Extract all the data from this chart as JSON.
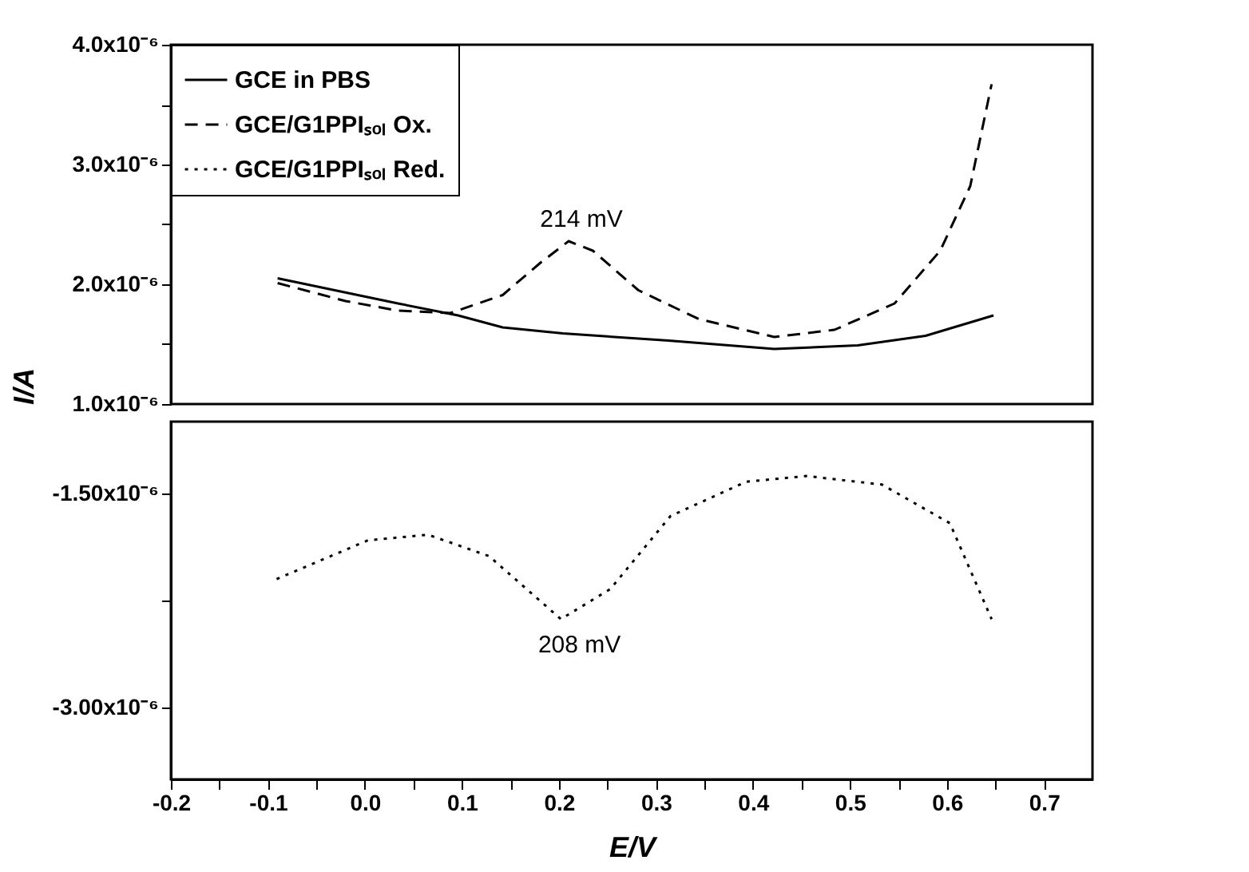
{
  "chart_data": [
    {
      "type": "line",
      "ylabel": "I/A",
      "xlim": [
        -0.2,
        0.75
      ],
      "ylim": [
        1e-06,
        4e-06
      ],
      "tick_labels": "y",
      "yticks": [
        {
          "value": 1e-06,
          "label": "1.0x10⁻⁶"
        },
        {
          "value": 1.5e-06,
          "label": null
        },
        {
          "value": 2e-06,
          "label": "2.0x10⁻⁶"
        },
        {
          "value": 2.5e-06,
          "label": null
        },
        {
          "value": 3e-06,
          "label": "3.0x10⁻⁶"
        },
        {
          "value": 3.5e-06,
          "label": null
        },
        {
          "value": 4e-06,
          "label": "4.0x10⁻⁶"
        }
      ],
      "legend": "top left",
      "grid": false,
      "annotations": [
        {
          "text": "214 mV",
          "x": 0.21,
          "y": 2.36e-06
        }
      ],
      "series": [
        {
          "name": "GCE in PBS",
          "color": "#000000",
          "line_style": "solid",
          "x": [
            -0.09,
            0.034,
            0.096,
            0.142,
            0.204,
            0.313,
            0.422,
            0.508,
            0.578,
            0.648
          ],
          "values": [
            2.05e-06,
            1.84e-06,
            1.74e-06,
            1.64e-06,
            1.59e-06,
            1.53e-06,
            1.46e-06,
            1.49e-06,
            1.57e-06,
            1.74e-06
          ]
        },
        {
          "name": "GCE/G1PPIₛₒₗ Ox.",
          "color": "#000000",
          "line_style": "dashed",
          "x": [
            -0.09,
            -0.02,
            0.034,
            0.088,
            0.142,
            0.181,
            0.21,
            0.235,
            0.282,
            0.344,
            0.422,
            0.484,
            0.546,
            0.593,
            0.624,
            0.646
          ],
          "values": [
            2.01e-06,
            1.86e-06,
            1.78e-06,
            1.76e-06,
            1.91e-06,
            2.18e-06,
            2.36e-06,
            2.28e-06,
            1.95e-06,
            1.71e-06,
            1.56e-06,
            1.62e-06,
            1.84e-06,
            2.28e-06,
            2.82e-06,
            3.67e-06
          ]
        }
      ]
    },
    {
      "type": "line",
      "xlabel": "E/V",
      "xlim": [
        -0.2,
        0.75
      ],
      "ylim": [
        -3.5e-06,
        -1e-06
      ],
      "xticks": [
        -0.2,
        {
          "value": -0.15,
          "label": null
        },
        -0.1,
        {
          "value": -0.05,
          "label": null
        },
        {
          "value": 0.0,
          "label": "0.0"
        },
        {
          "value": 0.05,
          "label": null
        },
        0.1,
        {
          "value": 0.15,
          "label": null
        },
        0.2,
        {
          "value": 0.25,
          "label": null
        },
        0.3,
        {
          "value": 0.35,
          "label": null
        },
        0.4,
        {
          "value": 0.45,
          "label": null
        },
        0.5,
        {
          "value": 0.55,
          "label": null
        },
        0.6,
        {
          "value": 0.65,
          "label": null
        },
        0.7
      ],
      "yticks": [
        {
          "value": -1.5e-06,
          "label": "-1.50x10⁻⁶"
        },
        {
          "value": -2.25e-06,
          "label": null
        },
        {
          "value": -3e-06,
          "label": "-3.00x10⁻⁶"
        }
      ],
      "grid": false,
      "annotations": [
        {
          "text": "208 mV",
          "x": 0.208,
          "y": -2.38e-06
        }
      ],
      "series": [
        {
          "name": "GCE/G1PPIₛₒₗ Red.",
          "color": "#000000",
          "line_style": "dotted",
          "x": [
            -0.091,
            0.003,
            0.065,
            0.128,
            0.202,
            0.253,
            0.315,
            0.393,
            0.455,
            0.533,
            0.603,
            0.646
          ],
          "values": [
            -2.1e-06,
            -1.83e-06,
            -1.79e-06,
            -1.94e-06,
            -2.38e-06,
            -2.17e-06,
            -1.66e-06,
            -1.42e-06,
            -1.38e-06,
            -1.44e-06,
            -1.71e-06,
            -2.38e-06
          ]
        }
      ]
    }
  ]
}
